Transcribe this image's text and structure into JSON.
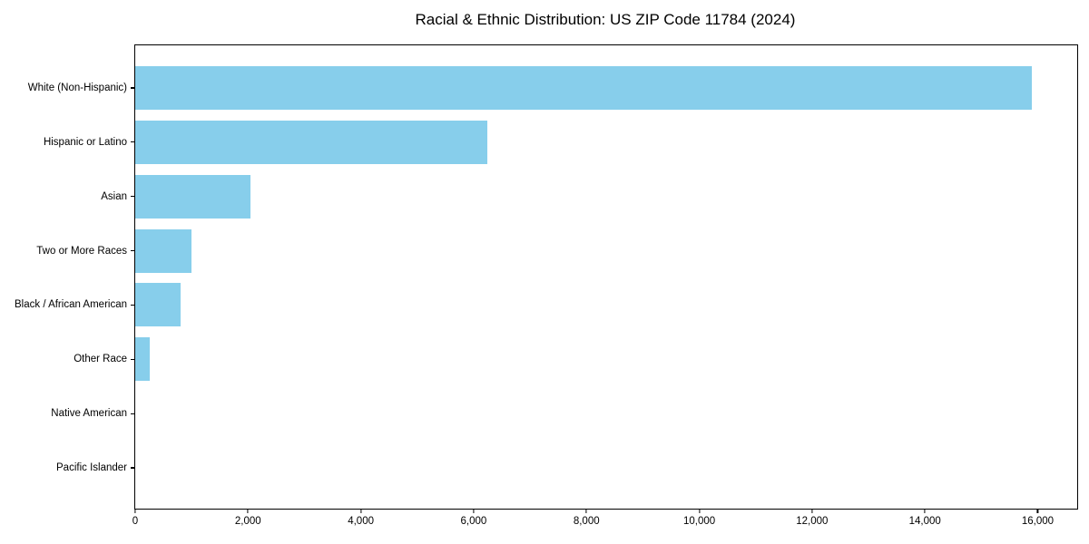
{
  "chart_data": {
    "type": "bar",
    "orientation": "horizontal",
    "title": "Racial & Ethnic Distribution: US ZIP Code 11784 (2024)",
    "categories": [
      "White (Non-Hispanic)",
      "Hispanic or Latino",
      "Asian",
      "Two or More Races",
      "Black / African American",
      "Other Race",
      "Native American",
      "Pacific Islander"
    ],
    "values": [
      15900,
      6250,
      2040,
      1000,
      800,
      255,
      0,
      0
    ],
    "xlabel": "",
    "ylabel": "",
    "xlim": [
      0,
      16700
    ],
    "x_ticks": [
      0,
      2000,
      4000,
      6000,
      8000,
      10000,
      12000,
      14000,
      16000
    ],
    "x_tick_labels": [
      "0",
      "2,000",
      "4,000",
      "6,000",
      "8,000",
      "10,000",
      "12,000",
      "14,000",
      "16,000"
    ],
    "grid": false,
    "legend": "none",
    "bar_color": "#87CEEB",
    "axis_color": "#000000",
    "background_color": "#FFFFFF"
  }
}
